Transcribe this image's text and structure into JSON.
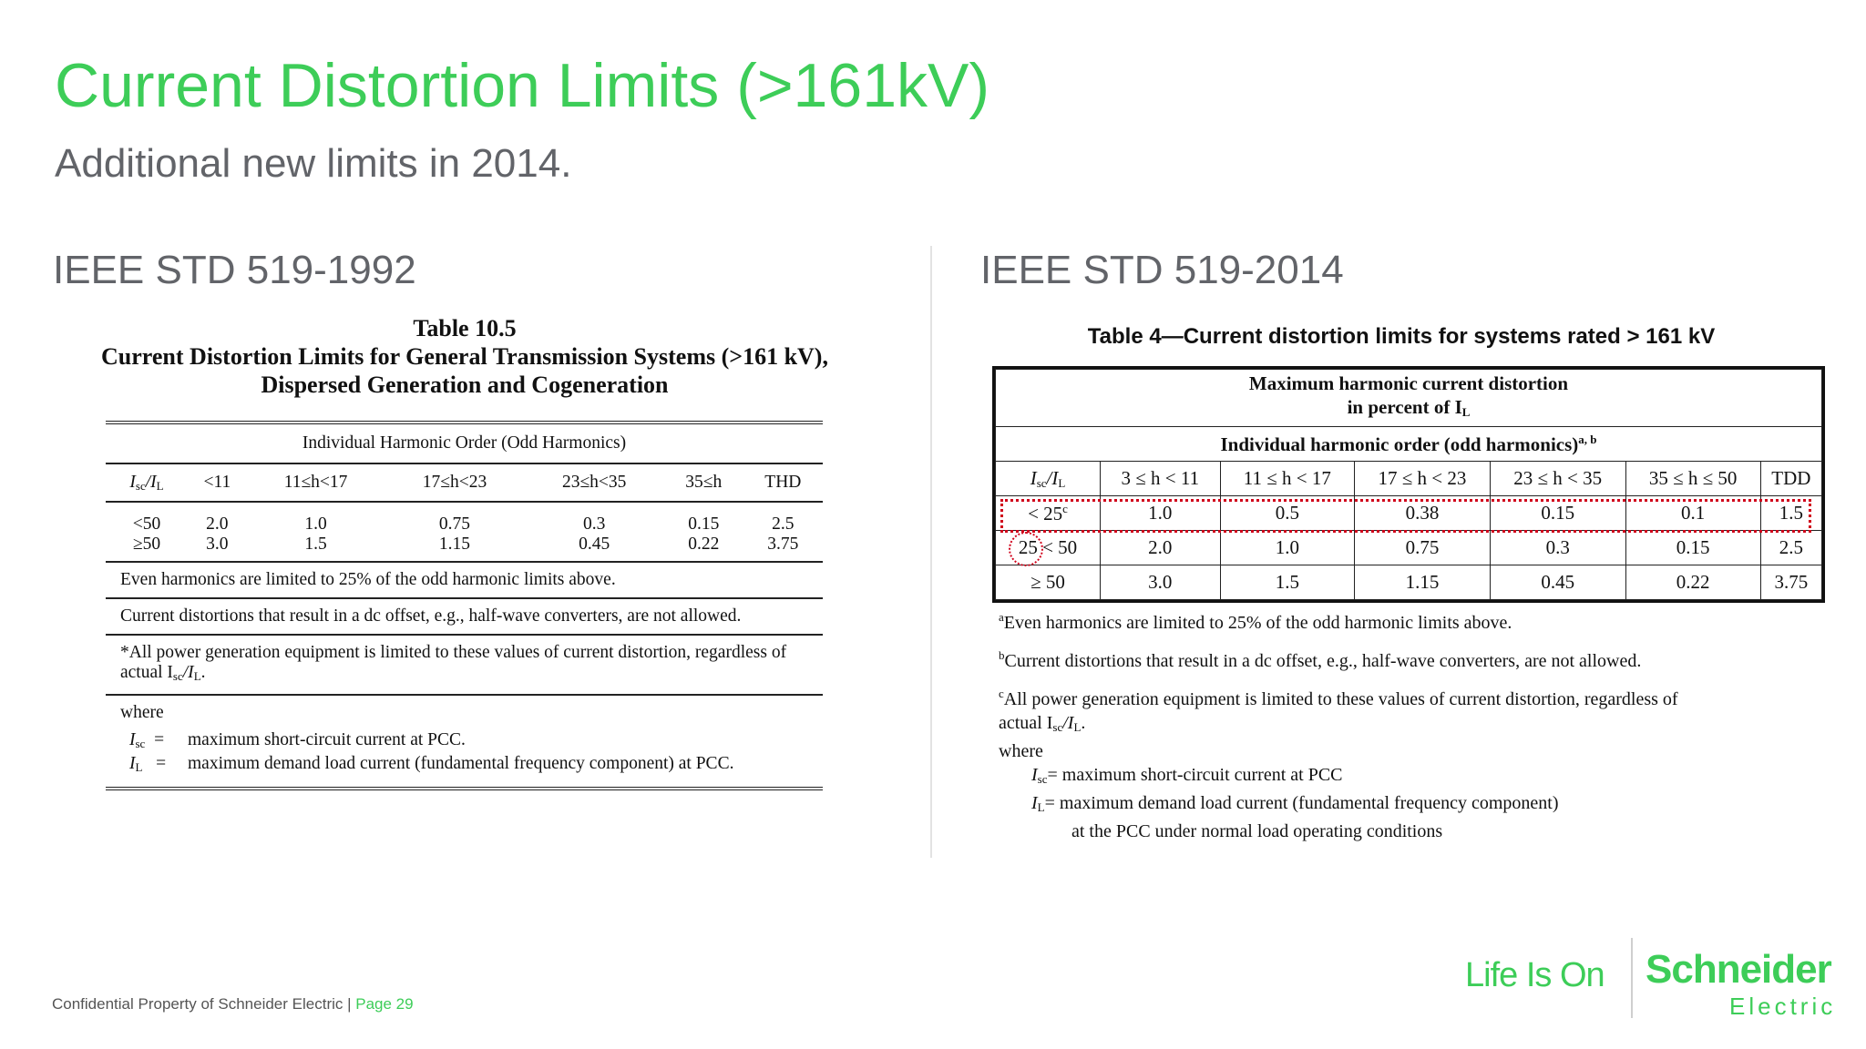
{
  "slide": {
    "title": "Current Distortion Limits (>161kV)",
    "subtitle": "Additional new limits in 2014.",
    "left_heading": "IEEE STD 519-1992",
    "right_heading": "IEEE STD 519-2014"
  },
  "table1992": {
    "caption1": "Table 10.5",
    "caption2": "Current Distortion Limits for General Transmission Systems (>161 kV),",
    "caption3": "Dispersed Generation and Cogeneration",
    "group_header": "Individual Harmonic Order (Odd Harmonics)",
    "col_isc": "I",
    "col_isc_sub1": "sc",
    "col_isc_mid": "/I",
    "col_isc_sub2": "L",
    "columns": [
      "<11",
      "11≤h<17",
      "17≤h<23",
      "23≤h<35",
      "35≤h",
      "THD"
    ],
    "rows": [
      [
        "<50",
        "2.0",
        "1.0",
        "0.75",
        "0.3",
        "0.15",
        "2.5"
      ],
      [
        "≥50",
        "3.0",
        "1.5",
        "1.15",
        "0.45",
        "0.22",
        "3.75"
      ]
    ],
    "note_even": "Even harmonics are limited to 25% of the odd harmonic limits above.",
    "note_dc": "Current distortions that result in a dc offset, e.g., half-wave converters, are not allowed.",
    "note_gen": "*All power generation equipment is limited to these values of current distortion, regardless of actual I",
    "note_gen_tail": ".",
    "where": "where",
    "isc_def": "maximum short-circuit current at PCC.",
    "il_def": "maximum demand load current (fundamental frequency component) at PCC."
  },
  "table2014": {
    "caption": "Table 4—Current distortion limits for systems rated > 161 kV",
    "header1a": "Maximum harmonic current distortion",
    "header1b": "in percent of I",
    "header2": "Individual harmonic order (odd harmonics)",
    "header2_sup": "a, b",
    "columns": [
      "3 ≤ h < 11",
      "11 ≤ h < 17",
      "17 ≤ h < 23",
      "23 ≤ h < 35",
      "35 ≤ h ≤ 50",
      "TDD"
    ],
    "rows": [
      [
        "< 25",
        "1.0",
        "0.5",
        "0.38",
        "0.15",
        "0.1",
        "1.5"
      ],
      [
        "25 < 50",
        "2.0",
        "1.0",
        "0.75",
        "0.3",
        "0.15",
        "2.5"
      ],
      [
        "≥ 50",
        "3.0",
        "1.5",
        "1.15",
        "0.45",
        "0.22",
        "3.75"
      ]
    ],
    "row1_sup": "c",
    "note_a": "Even harmonics are limited to 25% of the odd harmonic limits above.",
    "note_b": "Current distortions that result in a dc offset, e.g., half-wave converters, are not allowed.",
    "note_c1": "All power generation equipment is limited to these values of current distortion, regardless of",
    "note_c2": "actual I",
    "where": "where",
    "isc_def": "= maximum short-circuit current at PCC",
    "il_def1": "= maximum demand load current (fundamental frequency component)",
    "il_def2": "at the PCC under normal load operating conditions"
  },
  "footer": {
    "confidential": "Confidential Property of Schneider Electric | ",
    "page": "Page 29",
    "tagline": "Life Is On",
    "brand_top": "Schneider",
    "brand_bottom": "Electric"
  },
  "colors": {
    "accent": "#3dcd58",
    "highlight": "#d0021b",
    "heading_gray": "#626469"
  }
}
